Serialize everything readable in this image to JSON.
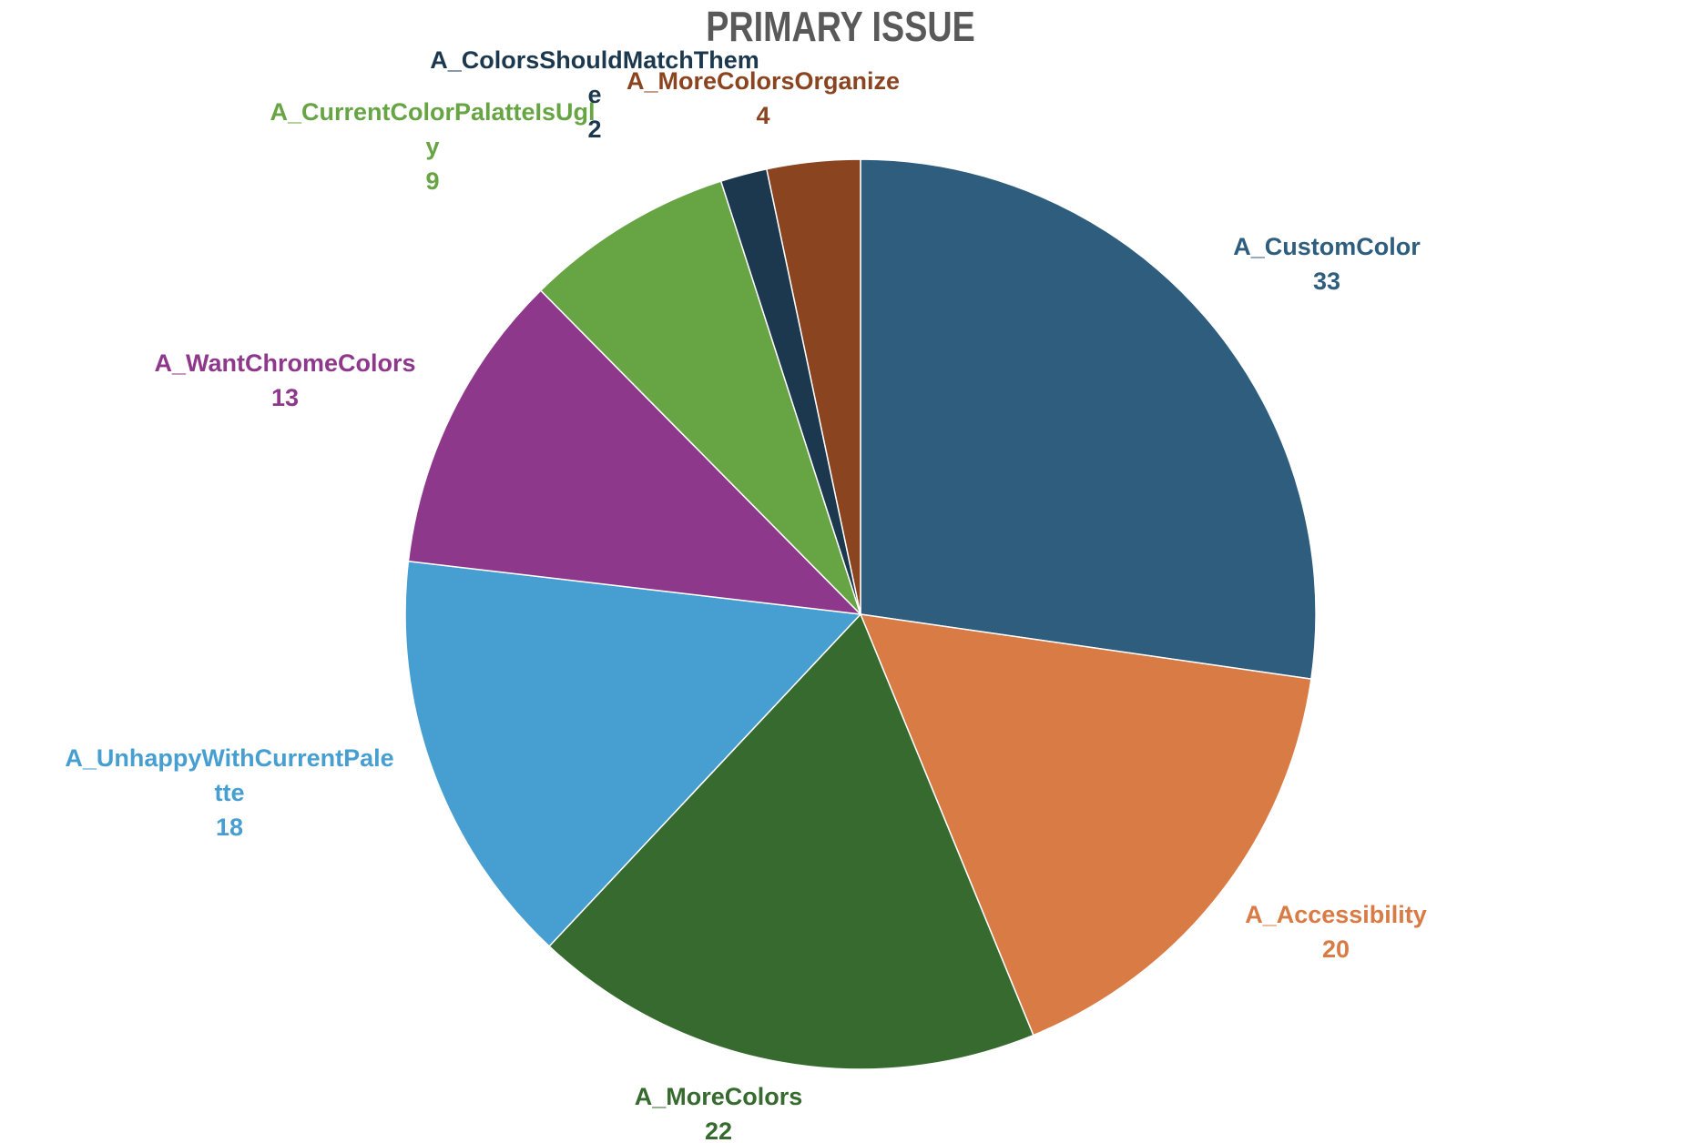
{
  "chart_data": {
    "type": "pie",
    "title": "PRIMARY ISSUE",
    "slices": [
      {
        "name": "A_CustomColor",
        "value": 33,
        "color": "#2e5d7e",
        "label_lines": [
          "A_CustomColor"
        ]
      },
      {
        "name": "A_Accessibility",
        "value": 20,
        "color": "#d97b45",
        "label_lines": [
          "A_Accessibility"
        ]
      },
      {
        "name": "A_MoreColors",
        "value": 22,
        "color": "#366a2f",
        "label_lines": [
          "A_MoreColors"
        ]
      },
      {
        "name": "A_UnhappyWithCurrentPalette",
        "value": 18,
        "color": "#469ed1",
        "label_lines": [
          "A_UnhappyWithCurrentPale",
          "tte"
        ]
      },
      {
        "name": "A_WantChromeColors",
        "value": 13,
        "color": "#8e388c",
        "label_lines": [
          "A_WantChromeColors"
        ]
      },
      {
        "name": "A_CurrentColorPalatteIsUgly",
        "value": 9,
        "color": "#67a444",
        "label_lines": [
          "A_CurrentColorPalatteIsUgl",
          "y"
        ]
      },
      {
        "name": "A_ColorsShouldMatchTheme",
        "value": 2,
        "color": "#1c384e",
        "label_lines": [
          "A_ColorsShouldMatchThem",
          "e"
        ]
      },
      {
        "name": "A_MoreColorsOrganize",
        "value": 4,
        "color": "#8a4420",
        "label_lines": [
          "A_MoreColorsOrganize"
        ]
      }
    ],
    "start_angle_deg": 0,
    "direction": "clockwise",
    "show_data_labels": true,
    "legend": "none"
  }
}
